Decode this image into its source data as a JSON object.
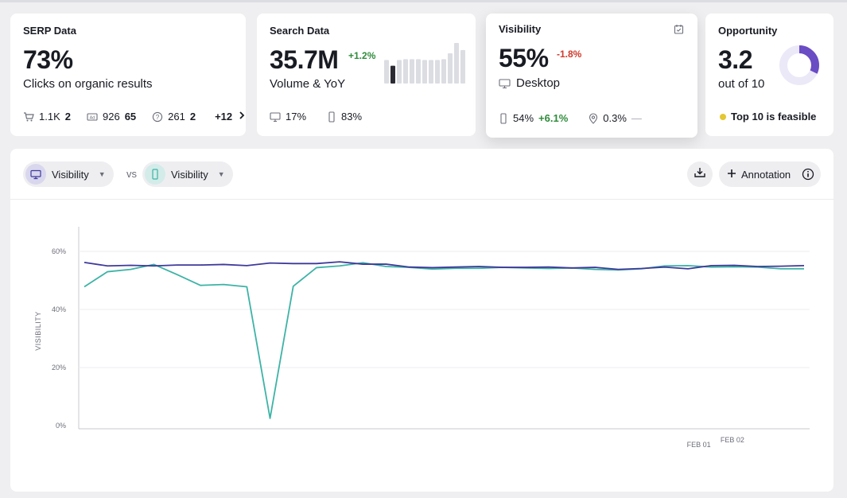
{
  "cards": {
    "serp": {
      "title": "SERP Data",
      "value": "73%",
      "subtitle": "Clicks on organic results",
      "stats": [
        {
          "icon": "cart-icon",
          "text": "1.1K",
          "bold": "2"
        },
        {
          "icon": "ad-icon",
          "text": "926",
          "bold": "65"
        },
        {
          "icon": "question-icon",
          "text": "261",
          "bold": "2"
        }
      ],
      "more": "+12"
    },
    "search": {
      "title": "Search Data",
      "value": "35.7M",
      "change": "+1.2%",
      "subtitle": "Volume & YoY",
      "desktop": "17%",
      "mobile": "83%",
      "trend": [
        0.57,
        0.43,
        0.57,
        0.59,
        0.59,
        0.59,
        0.57,
        0.57,
        0.57,
        0.59,
        0.73,
        0.98,
        0.81
      ],
      "highlight_index": 1
    },
    "visibility": {
      "title": "Visibility",
      "value": "55%",
      "change": "-1.8%",
      "device": "Desktop",
      "mobile_value": "54%",
      "mobile_change": "+6.1%",
      "local_value": "0.3%",
      "local_change": "—"
    },
    "opportunity": {
      "title": "Opportunity",
      "value": "3.2",
      "subtitle": "out of 10",
      "note": "Top 10 is feasible",
      "score_fraction": 0.32,
      "accent": "#6a4cc4",
      "dot": "#e3c733"
    }
  },
  "toolbar": {
    "left_label": "Visibility",
    "vs_label": "vs",
    "right_label": "Visibility",
    "annotation_label": "Annotation"
  },
  "chart_data": {
    "type": "line",
    "ylabel": "VISIBILITY",
    "ylim": [
      0,
      60
    ],
    "yticks": [
      "0%",
      "20%",
      "40%",
      "60%"
    ],
    "ytick_values": [
      0,
      20,
      40,
      60
    ],
    "xtick_labels": [
      "FEB 01",
      "FEB 02"
    ],
    "xtick_indices": [
      26.5,
      27.4
    ],
    "series": [
      {
        "color": "#3f3a9a",
        "values": [
          56.2,
          55.0,
          55.2,
          55.0,
          55.3,
          55.3,
          55.5,
          55.1,
          56.0,
          55.8,
          55.8,
          56.4,
          55.6,
          55.6,
          54.6,
          54.4,
          54.6,
          54.8,
          54.5,
          54.5,
          54.6,
          54.3,
          54.5,
          53.8,
          54.1,
          54.6,
          54.0,
          55.1,
          55.2,
          54.8,
          54.9,
          55.1
        ]
      },
      {
        "color": "#3db3a6",
        "values": [
          47.8,
          53.0,
          53.8,
          55.5,
          52.0,
          48.3,
          48.6,
          47.8,
          2.5,
          48.0,
          54.4,
          55.0,
          56.1,
          54.8,
          54.5,
          53.9,
          54.2,
          54.2,
          54.5,
          54.3,
          54.1,
          54.3,
          53.8,
          53.6,
          54.0,
          55.0,
          55.1,
          54.6,
          54.7,
          54.6,
          54.0,
          54.0
        ]
      }
    ]
  }
}
